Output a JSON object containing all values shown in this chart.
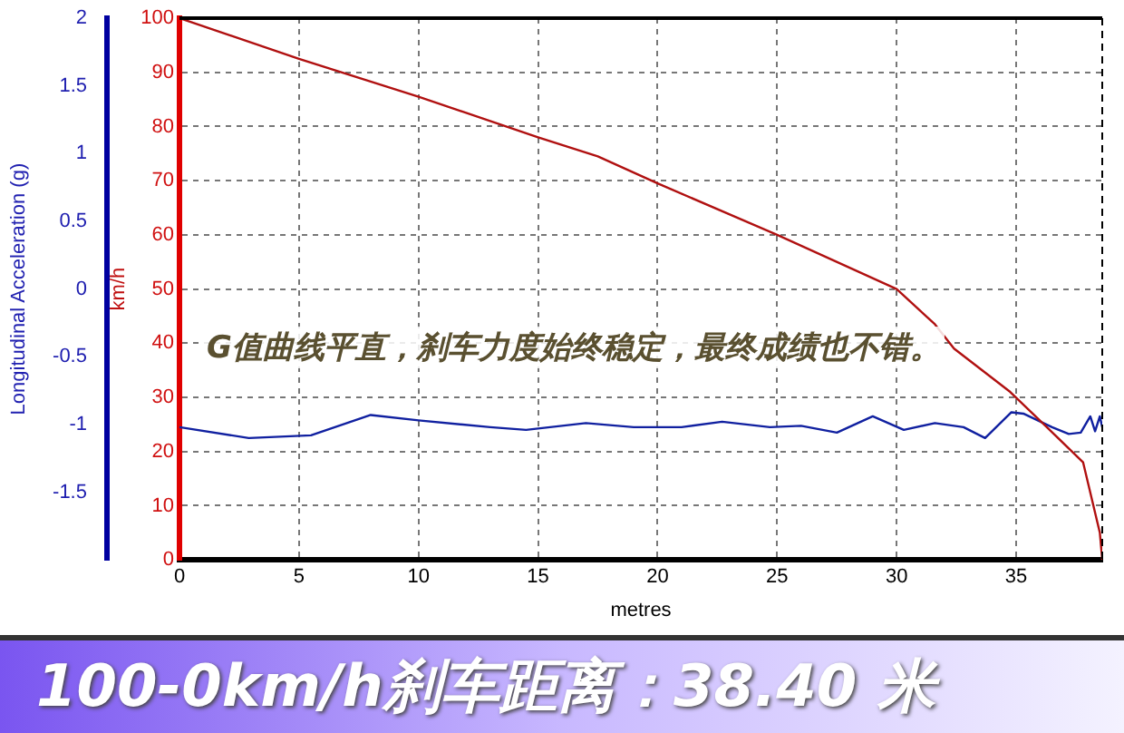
{
  "chart_data": {
    "type": "line",
    "title": "100-0km/h刹车距离：38.40 米",
    "xlabel": "metres",
    "ylabel": "km/h",
    "y2label": "Longitudinal Acceleration (g)",
    "annotations": [
      "G值曲线平直，刹车力度始终稳定，最终成绩也不错。"
    ],
    "xlim": [
      0,
      38.6
    ],
    "xticks": [
      0,
      5,
      10,
      15,
      20,
      25,
      30,
      35
    ],
    "ylim": [
      0,
      100
    ],
    "yticks": [
      0,
      10,
      20,
      30,
      40,
      50,
      60,
      70,
      80,
      90,
      100
    ],
    "y2lim": [
      -2,
      2
    ],
    "y2ticks": [
      -1.5,
      -1,
      -0.5,
      0,
      0.5,
      1,
      1.5,
      2
    ],
    "grid": true,
    "legend": false,
    "marker": "none",
    "line_style": "solid",
    "series": [
      {
        "color": "#b01010",
        "x": [
          0,
          5,
          10,
          15,
          17.5,
          20,
          25,
          30,
          31.6,
          32.4,
          34.75,
          36.4,
          37.8,
          38.5,
          38.6
        ],
        "values": [
          100,
          92.5,
          85.5,
          78,
          74.5,
          69.5,
          60,
          50,
          43.5,
          39,
          31,
          24,
          18,
          5,
          0
        ]
      },
      {
        "color": "#1020a0",
        "axis": "y2",
        "x": [
          0,
          2.9,
          5.5,
          8,
          10,
          13,
          14.5,
          17,
          19,
          21,
          22.7,
          24.7,
          26,
          27.5,
          29,
          30.3,
          31.6,
          32.8,
          33.7,
          34.8,
          35.3,
          36.5,
          37.2,
          37.7,
          38.1,
          38.3,
          38.5,
          38.6
        ],
        "values": [
          -1.02,
          -1.1,
          -1.08,
          -0.93,
          -0.97,
          -1.02,
          -1.04,
          -0.99,
          -1.02,
          -1.02,
          -0.98,
          -1.02,
          -1.01,
          -1.06,
          -0.94,
          -1.04,
          -0.99,
          -1.02,
          -1.1,
          -0.91,
          -0.92,
          -1.02,
          -1.07,
          -1.06,
          -0.94,
          -1.05,
          -0.94,
          -1.02
        ]
      }
    ]
  }
}
